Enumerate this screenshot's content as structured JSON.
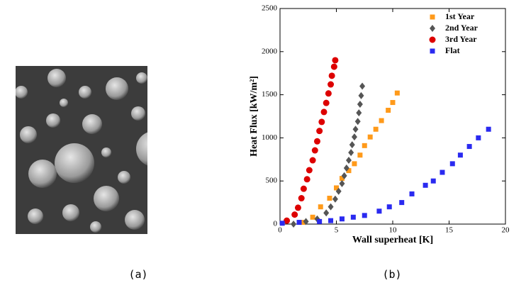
{
  "figure": {
    "panel_labels": [
      "(a)",
      "(b)"
    ]
  },
  "chart_data": {
    "type": "scatter",
    "xlabel": "Wall superheat [K]",
    "ylabel": "Heat Flux [kW/m²]",
    "xlim": [
      0,
      20
    ],
    "xticks": [
      0,
      5,
      10,
      15,
      20
    ],
    "ylim": [
      0,
      2500
    ],
    "yticks": [
      0,
      500,
      1000,
      1500,
      2000,
      2500
    ],
    "grid": false,
    "legend": "upper right",
    "series": [
      {
        "name": "1st Year",
        "color": "#ff9a1a",
        "marker": "square",
        "x": [
          2.0,
          2.9,
          3.6,
          4.4,
          5.0,
          5.5,
          6.1,
          6.6,
          7.1,
          7.5,
          8.0,
          8.5,
          9.0,
          9.6,
          10.0,
          10.4
        ],
        "values": [
          20,
          80,
          200,
          300,
          420,
          530,
          620,
          700,
          800,
          910,
          1010,
          1100,
          1200,
          1320,
          1410,
          1520
        ]
      },
      {
        "name": "2nd Year",
        "color": "#555555",
        "marker": "diamond",
        "x": [
          1.2,
          2.3,
          3.3,
          4.1,
          4.5,
          4.9,
          5.2,
          5.5,
          5.7,
          5.9,
          6.1,
          6.3,
          6.4,
          6.6,
          6.7,
          6.9,
          7.0,
          7.1,
          7.2,
          7.3
        ],
        "values": [
          0,
          30,
          60,
          130,
          200,
          290,
          380,
          470,
          560,
          650,
          740,
          830,
          920,
          1010,
          1100,
          1190,
          1290,
          1390,
          1490,
          1600
        ]
      },
      {
        "name": "3rd Year",
        "color": "#dd0000",
        "marker": "circle",
        "x": [
          0.6,
          1.3,
          1.6,
          1.9,
          2.1,
          2.4,
          2.6,
          2.9,
          3.1,
          3.3,
          3.5,
          3.7,
          3.9,
          4.1,
          4.3,
          4.5,
          4.6,
          4.8,
          4.9
        ],
        "values": [
          40,
          110,
          190,
          300,
          410,
          520,
          625,
          740,
          855,
          960,
          1080,
          1185,
          1300,
          1405,
          1515,
          1620,
          1720,
          1825,
          1900
        ]
      },
      {
        "name": "Flat",
        "color": "#2a2af0",
        "marker": "square",
        "x": [
          0.2,
          1.7,
          3.5,
          4.5,
          5.5,
          6.5,
          7.5,
          8.8,
          9.7,
          10.8,
          11.7,
          12.9,
          13.6,
          14.4,
          15.3,
          16.0,
          16.8,
          17.6,
          18.5
        ],
        "values": [
          10,
          20,
          30,
          40,
          60,
          80,
          100,
          150,
          200,
          250,
          350,
          450,
          500,
          600,
          700,
          800,
          900,
          1000,
          1100
        ]
      }
    ]
  }
}
